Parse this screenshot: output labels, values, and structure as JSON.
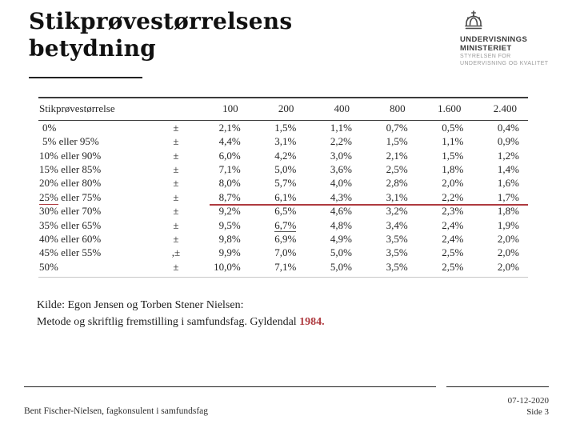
{
  "accent_color": "#ae3a3f",
  "slide": {
    "title_line1": "Stikprøvestørrelsens",
    "title_line2": "betydning"
  },
  "logo": {
    "crown_icon": "danish-crown-icon",
    "name_line1": "UNDERVISNINGS",
    "name_line2": "MINISTERIET",
    "sub_line1": "STYRELSEN FOR",
    "sub_line2": "UNDERVISNING OG KVALITET"
  },
  "table": {
    "header_label": "Stikprøvestørrelse",
    "columns": [
      "100",
      "200",
      "400",
      "800",
      "1.600",
      "2.400"
    ],
    "rows": [
      {
        "label": "0%",
        "pm": "±",
        "values": [
          "2,1%",
          "1,5%",
          "1,1%",
          "0,7%",
          "0,5%",
          "0,4%"
        ]
      },
      {
        "label": "5% eller 95%",
        "pm": "±",
        "values": [
          "4,4%",
          "3,1%",
          "2,2%",
          "1,5%",
          "1,1%",
          "0,9%"
        ]
      },
      {
        "label": "10% eller 90%",
        "pm": "±",
        "values": [
          "6,0%",
          "4,2%",
          "3,0%",
          "2,1%",
          "1,5%",
          "1,2%"
        ]
      },
      {
        "label": "15% eller 85%",
        "pm": "±",
        "values": [
          "7,1%",
          "5,0%",
          "3,6%",
          "2,5%",
          "1,8%",
          "1,4%"
        ]
      },
      {
        "label": "20% eller 80%",
        "pm": "±",
        "values": [
          "8,0%",
          "5,7%",
          "4,0%",
          "2,8%",
          "2,0%",
          "1,6%"
        ]
      },
      {
        "label": "25% eller 75%",
        "pm": "±",
        "values": [
          "8,7%",
          "6,1%",
          "4,3%",
          "3,1%",
          "2,2%",
          "1,7%"
        ],
        "label_underline_chars": 3,
        "red_rule": true
      },
      {
        "label": "30% eller 70%",
        "pm": "±",
        "values": [
          "9,2%",
          "6,5%",
          "4,6%",
          "3,2%",
          "2,3%",
          "1,8%"
        ]
      },
      {
        "label": "35% eller 65%",
        "pm": "±",
        "values": [
          "9,5%",
          "6,7%",
          "4,8%",
          "3,4%",
          "2,4%",
          "1,9%"
        ],
        "underline_value_index": 1
      },
      {
        "label": "40% eller 60%",
        "pm": "±",
        "values": [
          "9,8%",
          "6,9%",
          "4,9%",
          "3,5%",
          "2,4%",
          "2,0%"
        ]
      },
      {
        "label": "45% eller 55%",
        "pm": ",±",
        "values": [
          "9,9%",
          "7,0%",
          "5,0%",
          "3,5%",
          "2,5%",
          "2,0%"
        ]
      },
      {
        "label": "50%",
        "pm": "±",
        "values": [
          "10,0%",
          "7,1%",
          "5,0%",
          "3,5%",
          "2,5%",
          "2,0%"
        ]
      }
    ]
  },
  "source": {
    "line1": "Kilde: Egon Jensen og Torben Stener Nielsen:",
    "line2_prefix": "Metode og skriftlig fremstilling i samfundsfag.  Gyldendal ",
    "line2_year": "1984",
    "line2_suffix": "."
  },
  "footer": {
    "author": "Bent Fischer-Nielsen, fagkonsulent i samfundsfag",
    "date": "07-12-2020",
    "page": "Side 3"
  }
}
